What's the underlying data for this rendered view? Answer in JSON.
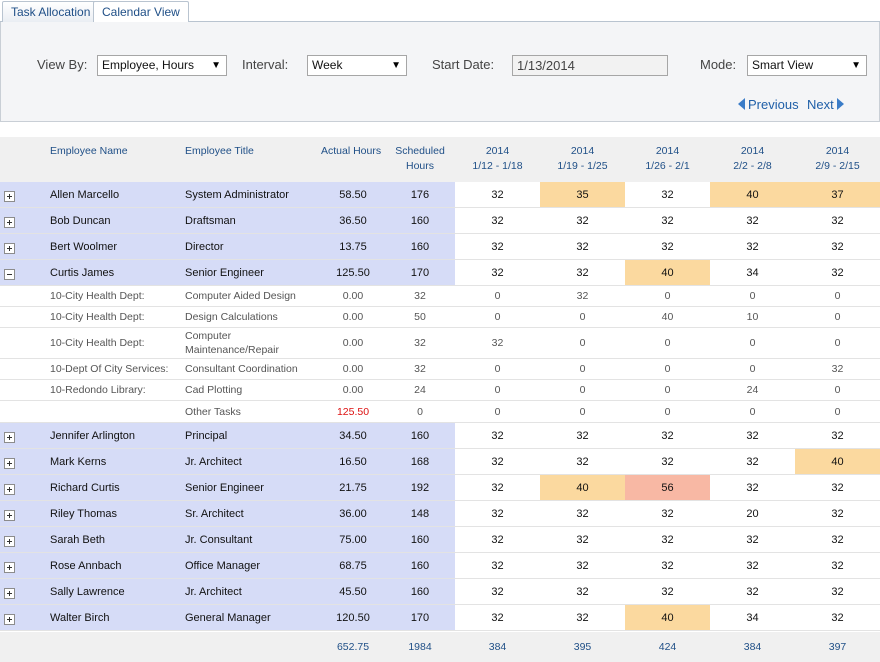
{
  "tabs": [
    "Task Allocation",
    "Calendar View"
  ],
  "filters": {
    "view_by_label": "View By:",
    "view_by_value": "Employee, Hours",
    "interval_label": "Interval:",
    "interval_value": "Week",
    "start_date_label": "Start Date:",
    "start_date_value": "1/13/2014",
    "mode_label": "Mode:",
    "mode_value": "Smart View"
  },
  "nav": {
    "previous": "Previous",
    "next": "Next"
  },
  "header": {
    "employee_name": "Employee Name",
    "employee_title": "Employee Title",
    "actual_hours": "Actual Hours",
    "scheduled_hours": [
      "Scheduled",
      "Hours"
    ],
    "weeks": [
      {
        "year": "2014",
        "range": "1/12 - 1/18"
      },
      {
        "year": "2014",
        "range": "1/19 - 1/25"
      },
      {
        "year": "2014",
        "range": "1/26 - 2/1"
      },
      {
        "year": "2014",
        "range": "2/2 - 2/8"
      },
      {
        "year": "2014",
        "range": "2/9 - 2/15"
      }
    ]
  },
  "rows": [
    {
      "type": "employee",
      "expanded": false,
      "name": "Allen Marcello",
      "title": "System Administrator",
      "actual": "58.50",
      "scheduled": "176",
      "weeks": [
        "32",
        "35",
        "32",
        "40",
        "37"
      ],
      "highlight": [
        "",
        "orange",
        "",
        "orange",
        "orange"
      ]
    },
    {
      "type": "employee",
      "expanded": false,
      "name": "Bob Duncan",
      "title": "Draftsman",
      "actual": "36.50",
      "scheduled": "160",
      "weeks": [
        "32",
        "32",
        "32",
        "32",
        "32"
      ],
      "highlight": [
        "",
        "",
        "",
        "",
        ""
      ]
    },
    {
      "type": "employee",
      "expanded": false,
      "name": "Bert Woolmer",
      "title": "Director",
      "actual": "13.75",
      "scheduled": "160",
      "weeks": [
        "32",
        "32",
        "32",
        "32",
        "32"
      ],
      "highlight": [
        "",
        "",
        "",
        "",
        ""
      ]
    },
    {
      "type": "employee",
      "expanded": true,
      "name": "Curtis James",
      "title": "Senior Engineer",
      "actual": "125.50",
      "scheduled": "170",
      "weeks": [
        "32",
        "32",
        "40",
        "34",
        "32"
      ],
      "highlight": [
        "",
        "",
        "orange",
        "",
        ""
      ]
    },
    {
      "type": "task",
      "name": "10-City Health Dept:",
      "title": "Computer Aided Design",
      "actual": "0.00",
      "scheduled": "32",
      "weeks": [
        "0",
        "32",
        "0",
        "0",
        "0"
      ]
    },
    {
      "type": "task",
      "name": "10-City Health Dept:",
      "title": "Design Calculations",
      "actual": "0.00",
      "scheduled": "50",
      "weeks": [
        "0",
        "0",
        "40",
        "10",
        "0"
      ]
    },
    {
      "type": "task",
      "name": "10-City Health Dept:",
      "title": "Computer Maintenance/Repair",
      "actual": "0.00",
      "scheduled": "32",
      "weeks": [
        "32",
        "0",
        "0",
        "0",
        "0"
      ]
    },
    {
      "type": "task",
      "name": "10-Dept Of City Services:",
      "title": "Consultant Coordination",
      "actual": "0.00",
      "scheduled": "32",
      "weeks": [
        "0",
        "0",
        "0",
        "0",
        "32"
      ]
    },
    {
      "type": "task",
      "name": "10-Redondo Library:",
      "title": "Cad Plotting",
      "actual": "0.00",
      "scheduled": "24",
      "weeks": [
        "0",
        "0",
        "0",
        "24",
        "0"
      ]
    },
    {
      "type": "task",
      "name": "",
      "title": "Other Tasks",
      "actual": "125.50",
      "actual_over": true,
      "scheduled": "0",
      "weeks": [
        "0",
        "0",
        "0",
        "0",
        "0"
      ]
    },
    {
      "type": "employee",
      "expanded": false,
      "name": "Jennifer Arlington",
      "title": "Principal",
      "actual": "34.50",
      "scheduled": "160",
      "weeks": [
        "32",
        "32",
        "32",
        "32",
        "32"
      ],
      "highlight": [
        "",
        "",
        "",
        "",
        ""
      ]
    },
    {
      "type": "employee",
      "expanded": false,
      "name": "Mark Kerns",
      "title": "Jr. Architect",
      "actual": "16.50",
      "scheduled": "168",
      "weeks": [
        "32",
        "32",
        "32",
        "32",
        "40"
      ],
      "highlight": [
        "",
        "",
        "",
        "",
        "orange"
      ]
    },
    {
      "type": "employee",
      "expanded": false,
      "name": "Richard Curtis",
      "title": "Senior Engineer",
      "actual": "21.75",
      "scheduled": "192",
      "weeks": [
        "32",
        "40",
        "56",
        "32",
        "32"
      ],
      "highlight": [
        "",
        "orange",
        "red",
        "",
        ""
      ]
    },
    {
      "type": "employee",
      "expanded": false,
      "name": "Riley Thomas",
      "title": "Sr. Architect",
      "actual": "36.00",
      "scheduled": "148",
      "weeks": [
        "32",
        "32",
        "32",
        "20",
        "32"
      ],
      "highlight": [
        "",
        "",
        "",
        "",
        ""
      ]
    },
    {
      "type": "employee",
      "expanded": false,
      "name": "Sarah Beth",
      "title": "Jr. Consultant",
      "actual": "75.00",
      "scheduled": "160",
      "weeks": [
        "32",
        "32",
        "32",
        "32",
        "32"
      ],
      "highlight": [
        "",
        "",
        "",
        "",
        ""
      ]
    },
    {
      "type": "employee",
      "expanded": false,
      "name": "Rose Annbach",
      "title": "Office Manager",
      "actual": "68.75",
      "scheduled": "160",
      "weeks": [
        "32",
        "32",
        "32",
        "32",
        "32"
      ],
      "highlight": [
        "",
        "",
        "",
        "",
        ""
      ]
    },
    {
      "type": "employee",
      "expanded": false,
      "name": "Sally Lawrence",
      "title": "Jr. Architect",
      "actual": "45.50",
      "scheduled": "160",
      "weeks": [
        "32",
        "32",
        "32",
        "32",
        "32"
      ],
      "highlight": [
        "",
        "",
        "",
        "",
        ""
      ]
    },
    {
      "type": "employee",
      "expanded": false,
      "name": "Walter Birch",
      "title": "General Manager",
      "actual": "120.50",
      "scheduled": "170",
      "weeks": [
        "32",
        "32",
        "40",
        "34",
        "32"
      ],
      "highlight": [
        "",
        "",
        "orange",
        "",
        ""
      ]
    }
  ],
  "totals": {
    "actual": "652.75",
    "scheduled": "1984",
    "weeks": [
      "384",
      "395",
      "424",
      "384",
      "397"
    ]
  },
  "colors": {
    "employee_row": "#d6dcf7",
    "over_orange": "#fbd99f",
    "over_red": "#f8b8a4",
    "link": "#1f4f87",
    "over_text": "#dd1111"
  }
}
